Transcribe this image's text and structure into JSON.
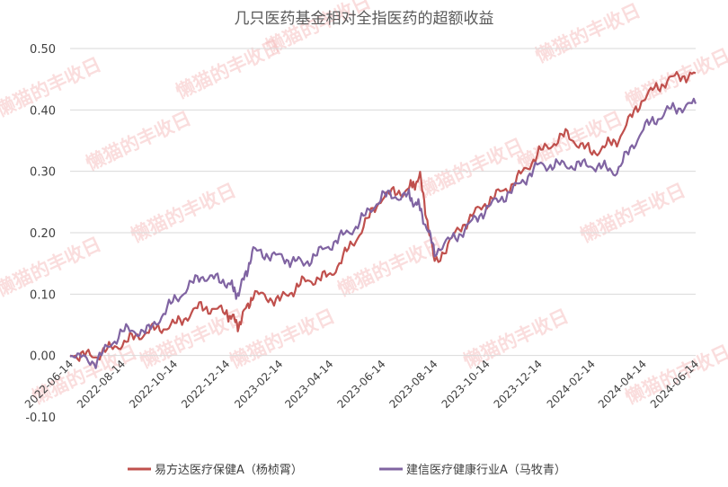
{
  "chart_data": {
    "type": "line",
    "title": "几只医药基金相对全指医药的超额收益",
    "xlabel": "",
    "ylabel": "",
    "ylim": [
      -0.1,
      0.5
    ],
    "yticks": [
      "-0.10",
      "0.00",
      "0.10",
      "0.20",
      "0.30",
      "0.40",
      "0.50"
    ],
    "xticks": [
      "2022-06-14",
      "2022-08-14",
      "2022-10-14",
      "2022-12-14",
      "2023-02-14",
      "2023-04-14",
      "2023-06-14",
      "2023-08-14",
      "2023-10-14",
      "2023-12-14",
      "2024-02-14",
      "2024-04-14",
      "2024-06-14"
    ],
    "grid": true,
    "legend_position": "bottom",
    "watermark": "懒猫的丰收日",
    "x_points": [
      "2022-06-14",
      "2022-07-14",
      "2022-08-14",
      "2022-09-14",
      "2022-10-14",
      "2022-11-14",
      "2022-12-14",
      "2022-12-28",
      "2023-01-14",
      "2023-02-14",
      "2023-03-14",
      "2023-04-14",
      "2023-05-14",
      "2023-06-14",
      "2023-07-14",
      "2023-07-28",
      "2023-08-14",
      "2023-09-14",
      "2023-10-14",
      "2023-11-14",
      "2023-12-14",
      "2024-01-14",
      "2024-02-14",
      "2024-03-14",
      "2024-04-14",
      "2024-05-14",
      "2024-06-14"
    ],
    "series": [
      {
        "name": "易方达医疗保健A（杨桢霄）",
        "color": "#c0504d",
        "values": [
          0.0,
          0.0,
          0.02,
          0.04,
          0.05,
          0.08,
          0.07,
          0.05,
          0.1,
          0.09,
          0.12,
          0.13,
          0.19,
          0.26,
          0.27,
          0.29,
          0.15,
          0.21,
          0.25,
          0.28,
          0.33,
          0.36,
          0.33,
          0.35,
          0.42,
          0.45,
          0.46
        ]
      },
      {
        "name": "建信医疗健康行业A（马牧青）",
        "color": "#8064a2",
        "values": [
          0.0,
          -0.01,
          0.04,
          0.04,
          0.09,
          0.13,
          0.12,
          0.1,
          0.17,
          0.16,
          0.15,
          0.18,
          0.21,
          0.26,
          0.26,
          0.24,
          0.17,
          0.2,
          0.24,
          0.27,
          0.31,
          0.31,
          0.31,
          0.3,
          0.37,
          0.4,
          0.41
        ]
      }
    ]
  }
}
